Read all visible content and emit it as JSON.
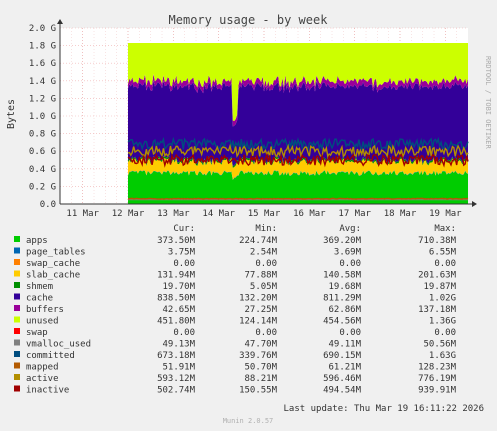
{
  "chart_data": {
    "type": "area",
    "title": "Memory usage - by week",
    "ylabel": "Bytes",
    "side_label": "RRDTOOL / TOBI OETIKER",
    "xlabel": "",
    "x_ticks": [
      "11 Mar",
      "12 Mar",
      "13 Mar",
      "14 Mar",
      "15 Mar",
      "16 Mar",
      "17 Mar",
      "18 Mar",
      "19 Mar"
    ],
    "y_ticks": [
      "0.0",
      "0.2 G",
      "0.4 G",
      "0.6 G",
      "0.8 G",
      "1.0 G",
      "1.2 G",
      "1.4 G",
      "1.6 G",
      "1.8 G",
      "2.0 G"
    ],
    "ylim": [
      0,
      2.0
    ],
    "y_unit": "GB",
    "xlim": [
      "2026-03-10T12:00",
      "2026-03-19T12:00"
    ],
    "data_start": "2026-03-12T00:00",
    "grid": true,
    "legend_columns": [
      "Cur:",
      "Min:",
      "Avg:",
      "Max:"
    ],
    "stack_order": [
      "apps",
      "page_tables",
      "swap_cache",
      "slab_cache",
      "shmem",
      "cache",
      "buffers",
      "unused",
      "swap"
    ],
    "stacked_typical_gb": {
      "apps": 0.35,
      "page_tables": 0.004,
      "swap_cache": 0.0,
      "slab_cache": 0.13,
      "shmem": 0.02,
      "cache": 0.83,
      "buffers": 0.06,
      "unused": 0.43,
      "swap": 0.0
    },
    "lines_typical_gb": {
      "vmalloc_used": 0.049,
      "committed": 0.68,
      "mapped": 0.06,
      "active": 0.6,
      "inactive": 0.5
    },
    "series": [
      {
        "name": "apps",
        "color": "#00cc00",
        "cur": "373.50M",
        "min": "224.74M",
        "avg": "369.20M",
        "max": "710.38M"
      },
      {
        "name": "page_tables",
        "color": "#0066b3",
        "cur": "3.75M",
        "min": "2.54M",
        "avg": "3.69M",
        "max": "6.55M"
      },
      {
        "name": "swap_cache",
        "color": "#ff8000",
        "cur": "0.00",
        "min": "0.00",
        "avg": "0.00",
        "max": "0.00"
      },
      {
        "name": "slab_cache",
        "color": "#ffcc00",
        "cur": "131.94M",
        "min": "77.88M",
        "avg": "140.58M",
        "max": "201.63M"
      },
      {
        "name": "shmem",
        "color": "#008f00",
        "cur": "19.70M",
        "min": "5.05M",
        "avg": "19.68M",
        "max": "19.87M"
      },
      {
        "name": "cache",
        "color": "#330099",
        "cur": "838.50M",
        "min": "132.20M",
        "avg": "811.29M",
        "max": "1.02G"
      },
      {
        "name": "buffers",
        "color": "#990099",
        "cur": "42.65M",
        "min": "27.25M",
        "avg": "62.86M",
        "max": "137.18M"
      },
      {
        "name": "unused",
        "color": "#ccff00",
        "cur": "451.80M",
        "min": "124.14M",
        "avg": "454.56M",
        "max": "1.36G"
      },
      {
        "name": "swap",
        "color": "#ff0000",
        "cur": "0.00",
        "min": "0.00",
        "avg": "0.00",
        "max": "0.00"
      },
      {
        "name": "vmalloc_used",
        "color": "#808080",
        "cur": "49.13M",
        "min": "47.70M",
        "avg": "49.11M",
        "max": "50.56M"
      },
      {
        "name": "committed",
        "color": "#004d7f",
        "cur": "673.18M",
        "min": "339.76M",
        "avg": "690.15M",
        "max": "1.63G"
      },
      {
        "name": "mapped",
        "color": "#b35a00",
        "cur": "51.91M",
        "min": "50.70M",
        "avg": "61.21M",
        "max": "128.23M"
      },
      {
        "name": "active",
        "color": "#b38f00",
        "cur": "593.12M",
        "min": "88.21M",
        "avg": "596.46M",
        "max": "776.19M"
      },
      {
        "name": "inactive",
        "color": "#a00000",
        "cur": "502.74M",
        "min": "150.55M",
        "avg": "494.54M",
        "max": "939.91M"
      }
    ],
    "last_update": "Last update: Thu Mar 19 16:11:22 2026",
    "footer": "Munin 2.0.57"
  }
}
